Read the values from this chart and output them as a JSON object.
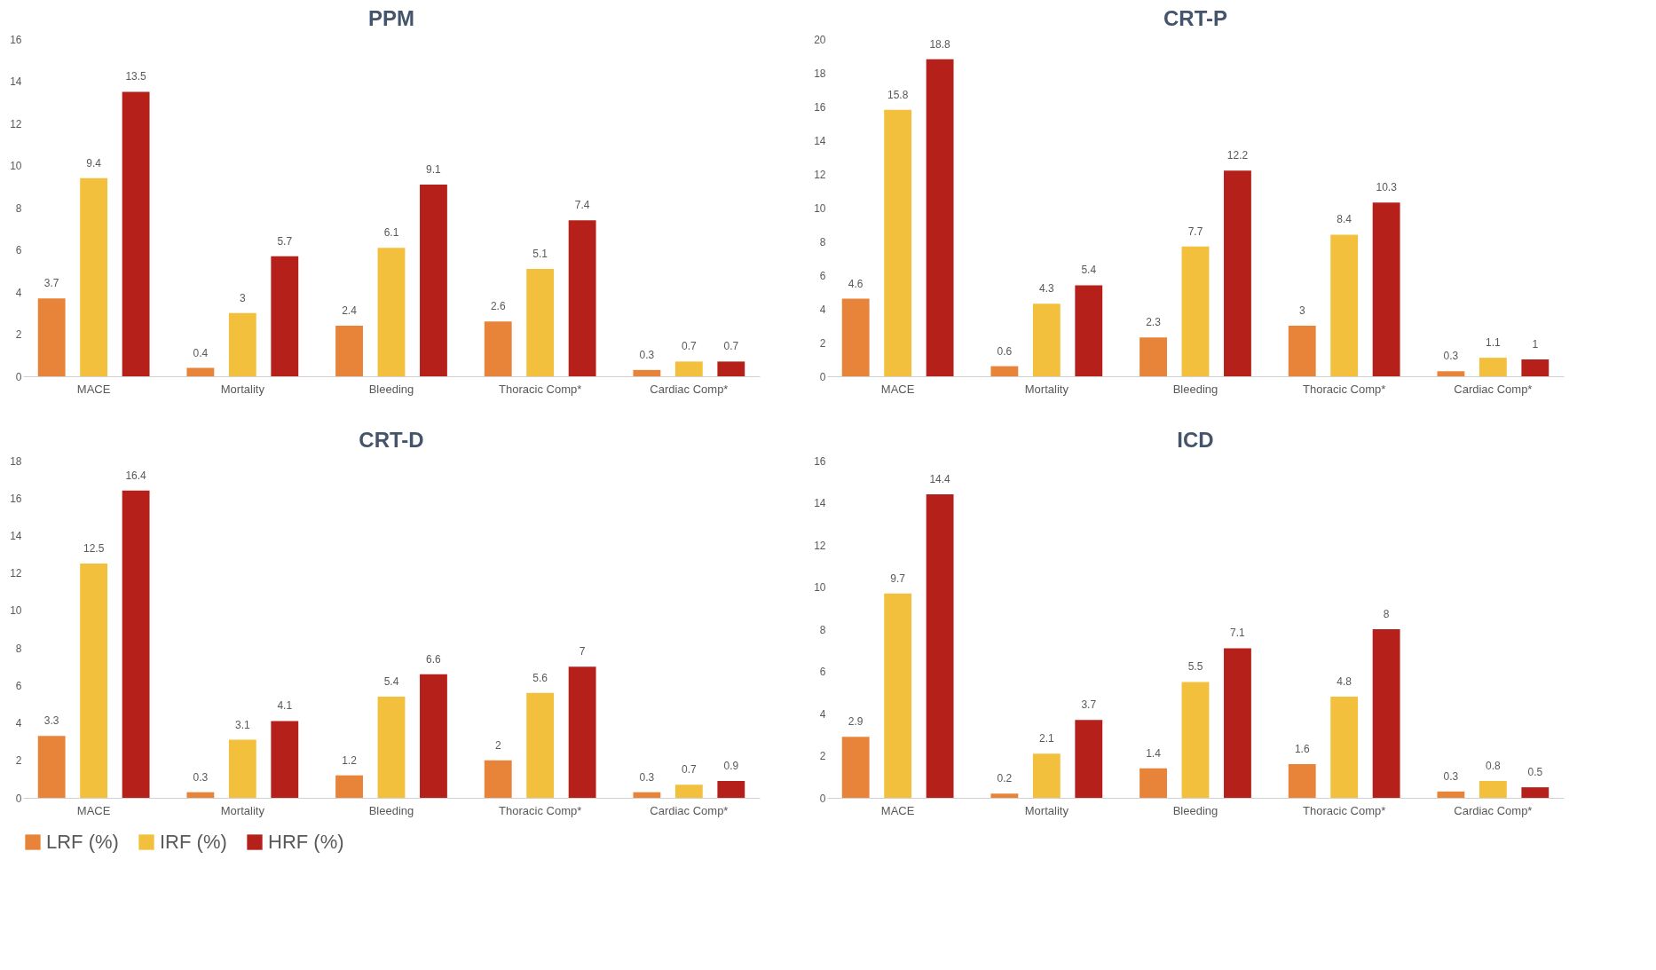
{
  "chart_data": [
    {
      "type": "bar",
      "title": "PPM",
      "categories": [
        "MACE",
        "Mortality",
        "Bleeding",
        "Thoracic Comp*",
        "Cardiac Comp*"
      ],
      "ylim": [
        0,
        16
      ],
      "yticks": [
        0,
        2,
        4,
        6,
        8,
        10,
        12,
        14,
        16
      ],
      "grid": false,
      "legend": "bottom",
      "data_labels": true,
      "series": [
        {
          "name": "LRF (%)",
          "color": "#e8833a",
          "values": [
            3.7,
            0.4,
            2.4,
            2.6,
            0.3
          ]
        },
        {
          "name": "IRF (%)",
          "color": "#f2c03c",
          "values": [
            9.4,
            3,
            6.1,
            5.1,
            0.7
          ]
        },
        {
          "name": "HRF (%)",
          "color": "#b5201a",
          "values": [
            13.5,
            5.7,
            9.1,
            7.4,
            0.7
          ]
        }
      ]
    },
    {
      "type": "bar",
      "title": "CRT-P",
      "categories": [
        "MACE",
        "Mortality",
        "Bleeding",
        "Thoracic Comp*",
        "Cardiac Comp*"
      ],
      "ylim": [
        0,
        20
      ],
      "yticks": [
        0,
        2,
        4,
        6,
        8,
        10,
        12,
        14,
        16,
        18,
        20
      ],
      "grid": false,
      "legend": "bottom",
      "data_labels": true,
      "series": [
        {
          "name": "LRF (%)",
          "color": "#e8833a",
          "values": [
            4.6,
            0.6,
            2.3,
            3,
            0.3
          ]
        },
        {
          "name": "IRF (%)",
          "color": "#f2c03c",
          "values": [
            15.8,
            4.3,
            7.7,
            8.4,
            1.1
          ]
        },
        {
          "name": "HRF (%)",
          "color": "#b5201a",
          "values": [
            18.8,
            5.4,
            12.2,
            10.3,
            1
          ]
        }
      ]
    },
    {
      "type": "bar",
      "title": "CRT-D",
      "categories": [
        "MACE",
        "Mortality",
        "Bleeding",
        "Thoracic Comp*",
        "Cardiac Comp*"
      ],
      "ylim": [
        0,
        18
      ],
      "yticks": [
        0,
        2,
        4,
        6,
        8,
        10,
        12,
        14,
        16,
        18
      ],
      "grid": false,
      "legend": "bottom",
      "data_labels": true,
      "series": [
        {
          "name": "LRF (%)",
          "color": "#e8833a",
          "values": [
            3.3,
            0.3,
            1.2,
            2,
            0.3
          ]
        },
        {
          "name": "IRF (%)",
          "color": "#f2c03c",
          "values": [
            12.5,
            3.1,
            5.4,
            5.6,
            0.7
          ]
        },
        {
          "name": "HRF (%)",
          "color": "#b5201a",
          "values": [
            16.4,
            4.1,
            6.6,
            7,
            0.9
          ]
        }
      ]
    },
    {
      "type": "bar",
      "title": "ICD",
      "categories": [
        "MACE",
        "Mortality",
        "Bleeding",
        "Thoracic Comp*",
        "Cardiac Comp*"
      ],
      "ylim": [
        0,
        16
      ],
      "yticks": [
        0,
        2,
        4,
        6,
        8,
        10,
        12,
        14,
        16
      ],
      "grid": false,
      "legend": "bottom",
      "data_labels": true,
      "series": [
        {
          "name": "LRF (%)",
          "color": "#e8833a",
          "values": [
            2.9,
            0.2,
            1.4,
            1.6,
            0.3
          ]
        },
        {
          "name": "IRF (%)",
          "color": "#f2c03c",
          "values": [
            9.7,
            2.1,
            5.5,
            4.8,
            0.8
          ]
        },
        {
          "name": "HRF (%)",
          "color": "#b5201a",
          "values": [
            14.4,
            3.7,
            7.1,
            8,
            0.5
          ]
        }
      ]
    }
  ]
}
